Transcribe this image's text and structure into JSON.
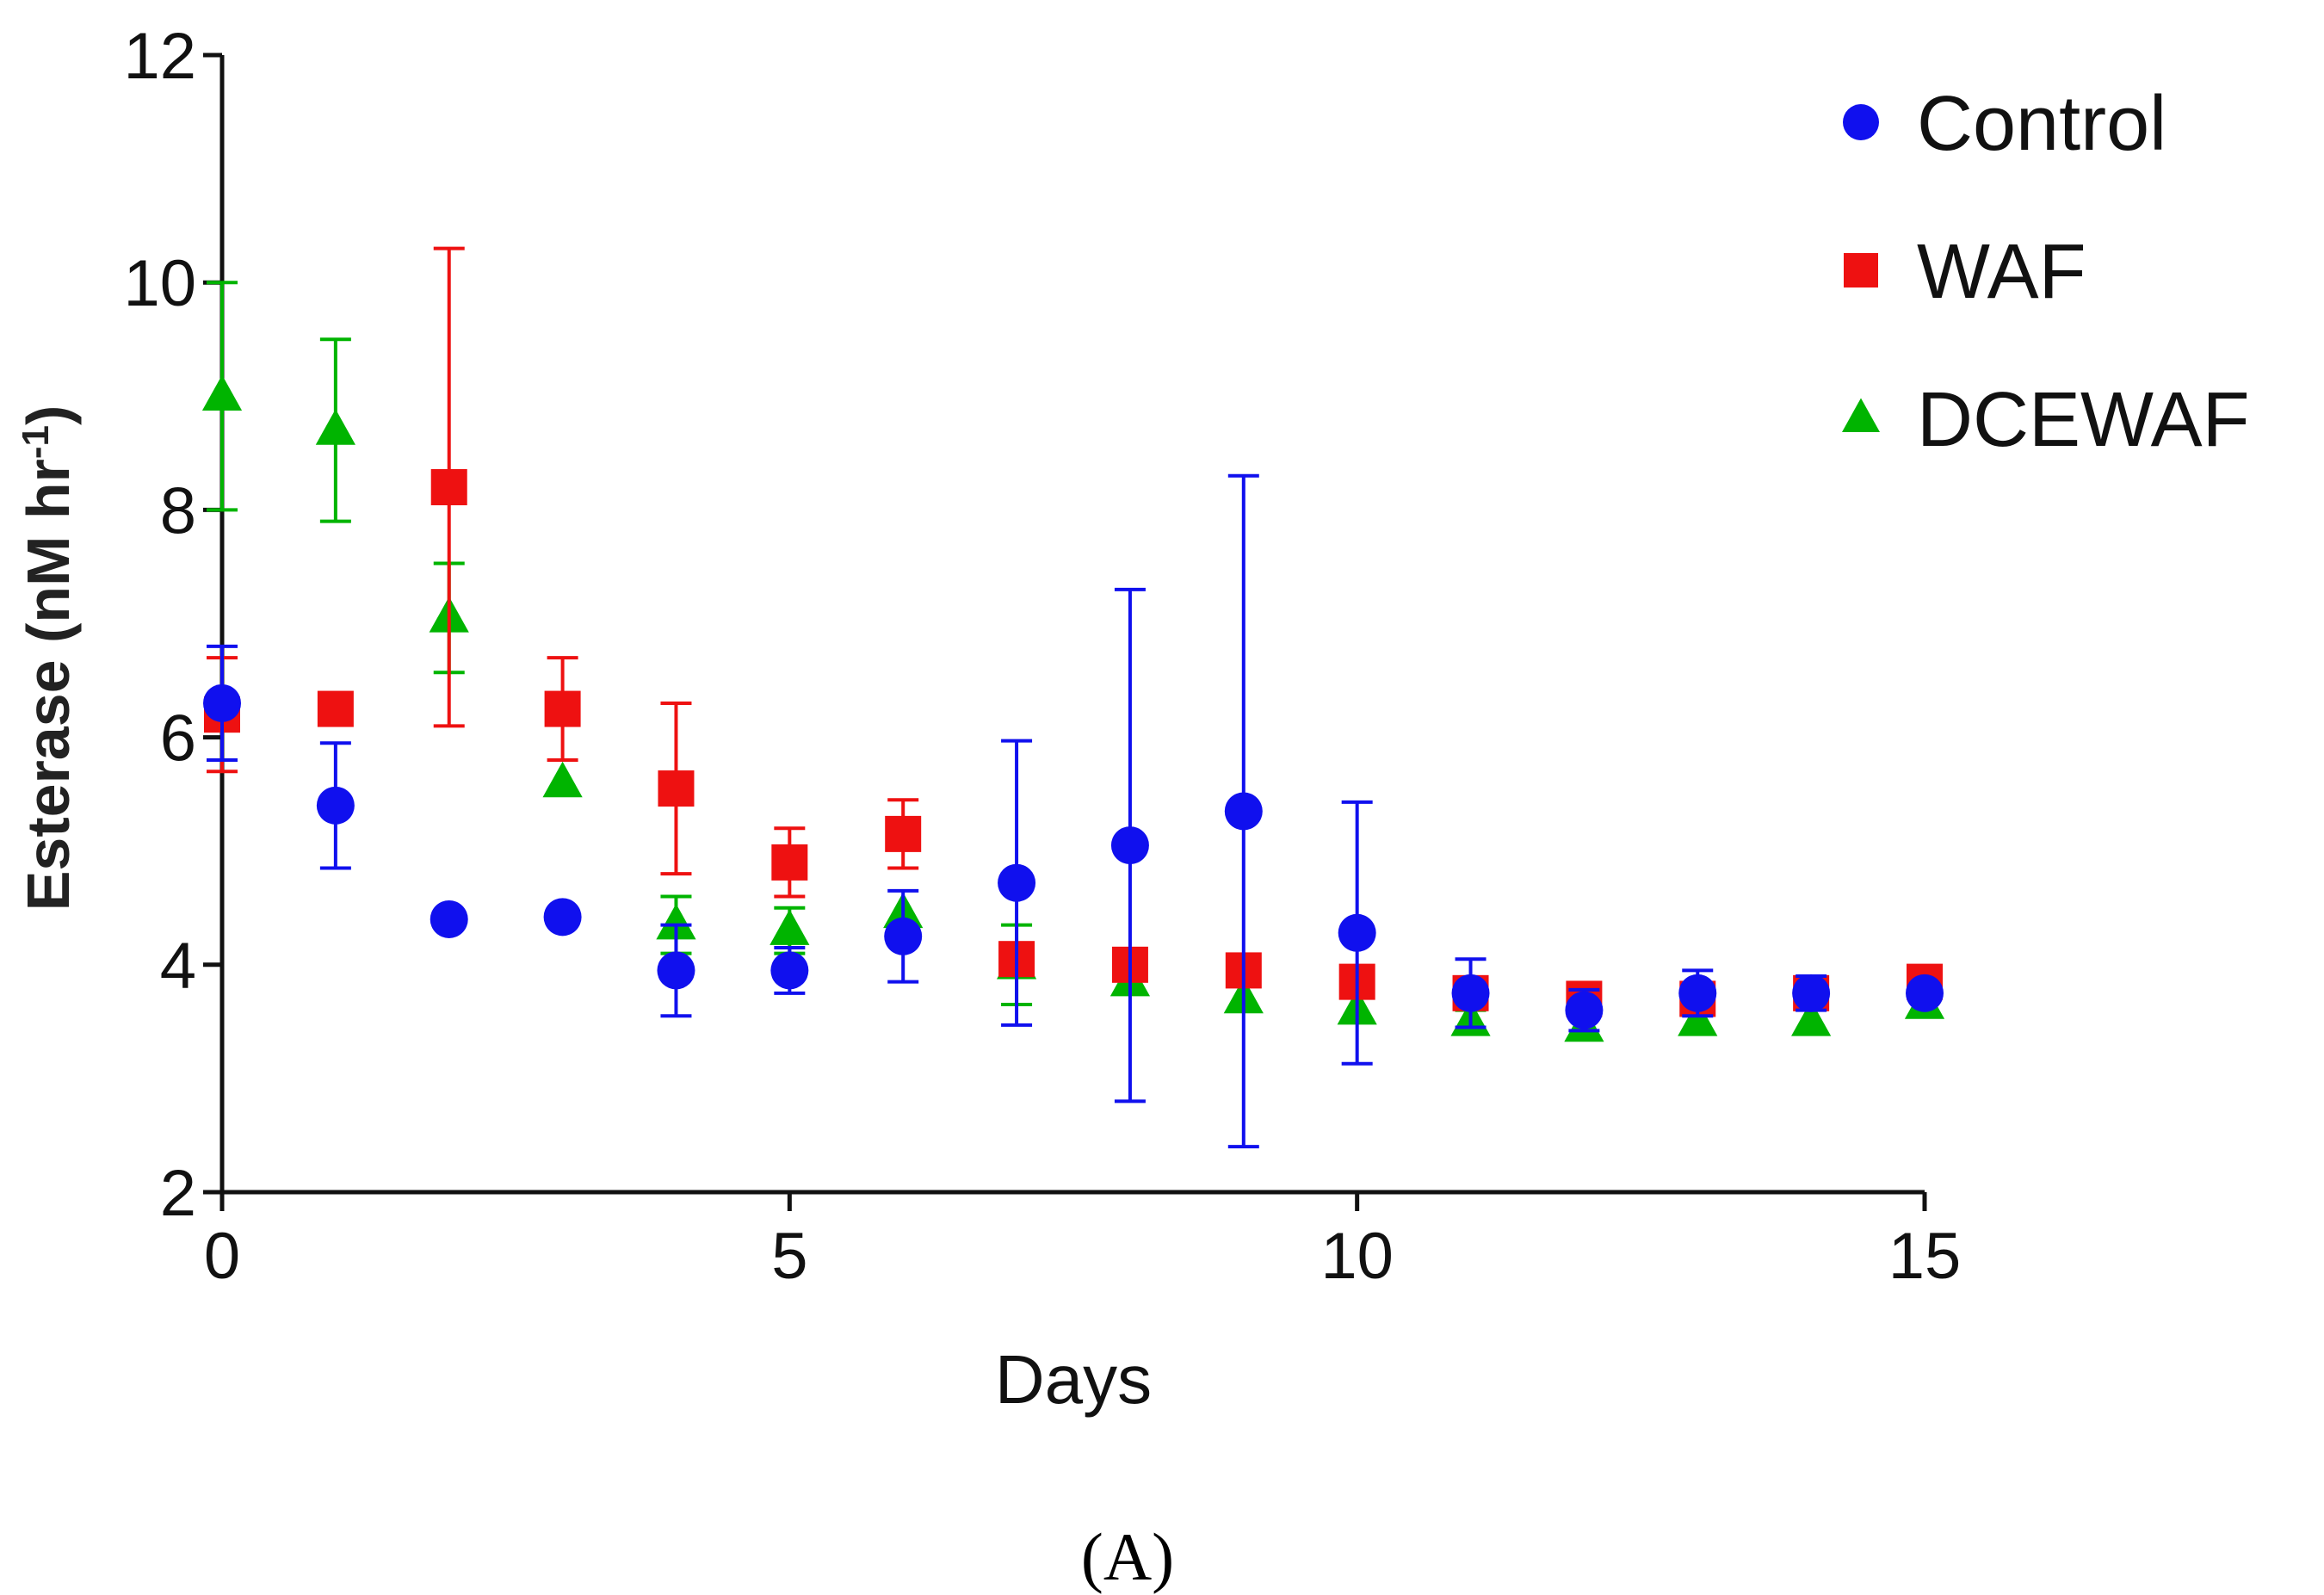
{
  "chart_data": {
    "type": "scatter",
    "title": "",
    "xlabel": "Days",
    "ylabel": "Esterase (nM hr",
    "ylabel_superscript": "-1",
    "ylabel_close": ")",
    "xlim": [
      0,
      15
    ],
    "ylim": [
      2,
      12
    ],
    "xticks": [
      0,
      5,
      10,
      15
    ],
    "xtick_labels": [
      "0",
      "5",
      "10",
      "15"
    ],
    "yticks": [
      2,
      4,
      6,
      8,
      10,
      12
    ],
    "ytick_labels": [
      "2",
      "4",
      "6",
      "8",
      "10",
      "12"
    ],
    "grid": false,
    "legend_position": "top-right",
    "panel_label": "(A)",
    "series": [
      {
        "name": "DCEWAF",
        "marker": "triangle",
        "color": "#00b400",
        "x": [
          0,
          1,
          2,
          3,
          4,
          5,
          6,
          7,
          8,
          9,
          10,
          11,
          12,
          13,
          14,
          15
        ],
        "y": [
          9.0,
          8.7,
          7.05,
          5.6,
          4.35,
          4.3,
          4.45,
          4.0,
          3.85,
          3.7,
          3.6,
          3.5,
          3.45,
          3.5,
          3.5,
          3.65
        ],
        "error": [
          1.0,
          0.8,
          0.48,
          0,
          0.25,
          0.2,
          0,
          0.35,
          0,
          0,
          0,
          0.1,
          0.1,
          0,
          0,
          0
        ]
      },
      {
        "name": "WAF",
        "marker": "square",
        "color": "#ee1111",
        "x": [
          0,
          1,
          2,
          3,
          4,
          5,
          6,
          7,
          8,
          9,
          10,
          11,
          12,
          13,
          14,
          15
        ],
        "y": [
          6.2,
          6.25,
          8.2,
          6.25,
          5.55,
          4.9,
          5.15,
          4.05,
          4.0,
          3.95,
          3.85,
          3.75,
          3.7,
          3.7,
          3.75,
          3.85
        ],
        "error": [
          0.5,
          0,
          2.1,
          0.45,
          0.75,
          0.3,
          0.3,
          0,
          0,
          0,
          0,
          0,
          0.1,
          0,
          0,
          0
        ]
      },
      {
        "name": "Control",
        "marker": "circle",
        "color": "#1010ee",
        "x": [
          0,
          1,
          2,
          3,
          4,
          5,
          6,
          7,
          8,
          9,
          10,
          11,
          12,
          13,
          14,
          15
        ],
        "y": [
          6.3,
          5.4,
          4.4,
          4.42,
          3.95,
          3.95,
          4.25,
          4.72,
          5.05,
          5.35,
          4.28,
          3.75,
          3.6,
          3.75,
          3.75,
          3.75
        ],
        "error": [
          0.5,
          0.55,
          0,
          0,
          0.4,
          0.2,
          0.4,
          1.25,
          2.25,
          2.95,
          1.15,
          0.3,
          0.18,
          0.2,
          0.15,
          0
        ]
      }
    ],
    "legend_order": [
      "Control",
      "WAF",
      "DCEWAF"
    ]
  }
}
